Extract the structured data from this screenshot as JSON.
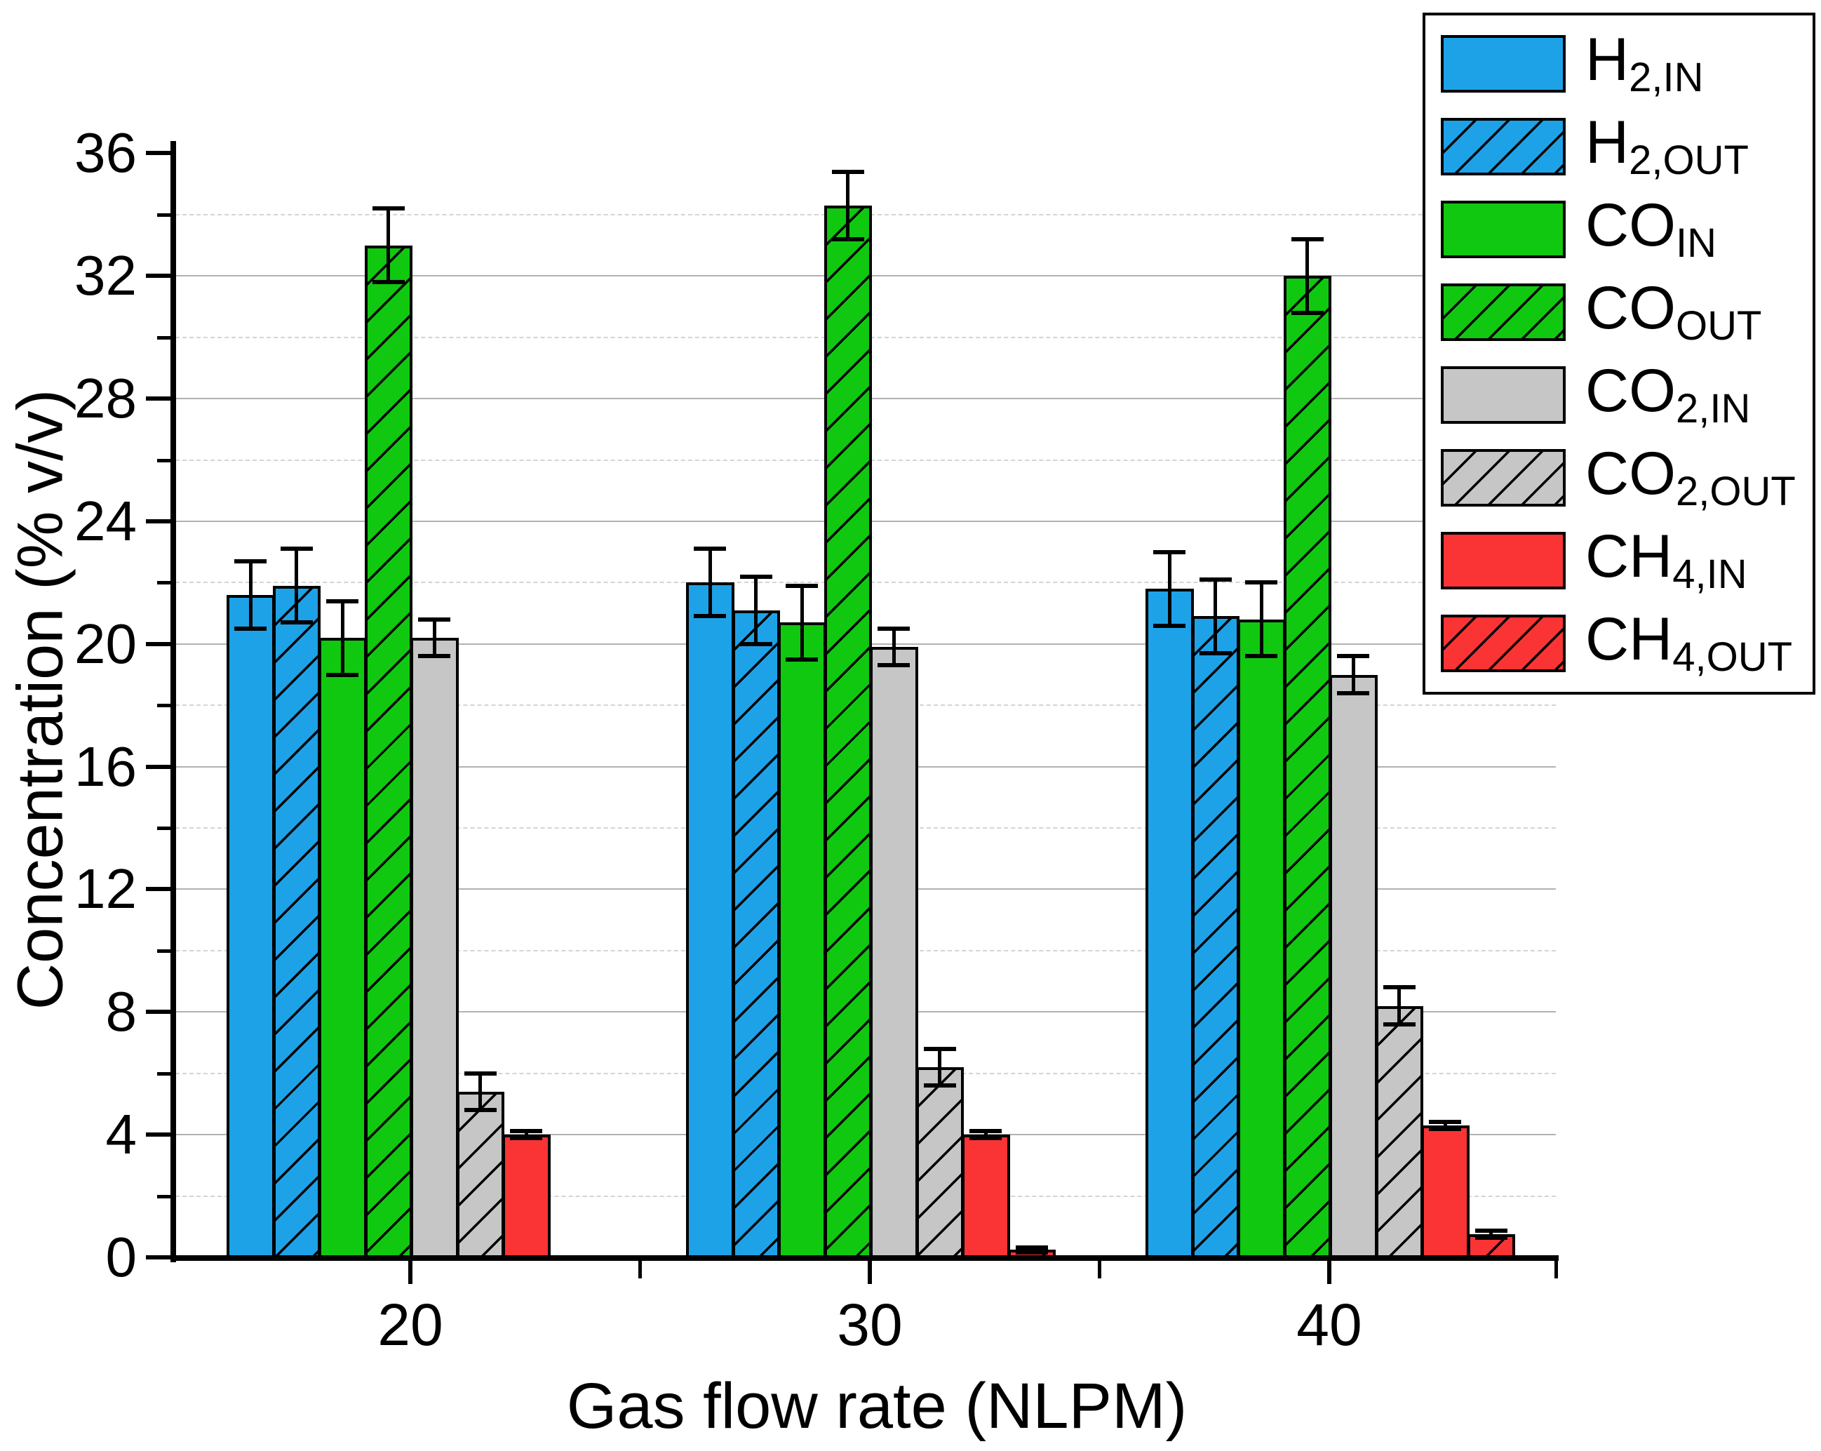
{
  "chart_data": {
    "type": "bar",
    "title": "",
    "xlabel": "Gas flow rate (NLPM)",
    "ylabel": "Concentration (% v/v)",
    "categories": [
      "20",
      "30",
      "40"
    ],
    "ylim": [
      0,
      36.4
    ],
    "y_major_ticks": [
      0,
      4,
      8,
      12,
      16,
      20,
      24,
      28,
      32,
      36
    ],
    "y_minor_ticks": [
      2,
      6,
      10,
      14,
      18,
      22,
      26,
      30,
      34
    ],
    "grid": {
      "major": "solid",
      "minor": "dashed"
    },
    "legend_position": "top-right",
    "error_bars": true,
    "series": [
      {
        "name": "H2,IN",
        "label_main": "H",
        "label_sub": "2,IN",
        "color": "#1da2e8",
        "hatch": false,
        "values": [
          21.6,
          22.0,
          21.8
        ],
        "errors": [
          1.1,
          1.1,
          1.2
        ]
      },
      {
        "name": "H2,OUT",
        "label_main": "H",
        "label_sub": "2,OUT",
        "color": "#1da2e8",
        "hatch": true,
        "values": [
          21.9,
          21.1,
          20.9
        ],
        "errors": [
          1.2,
          1.1,
          1.2
        ]
      },
      {
        "name": "CO,IN",
        "label_main": "CO",
        "label_sub": "IN",
        "color": "#10c810",
        "hatch": false,
        "values": [
          20.2,
          20.7,
          20.8
        ],
        "errors": [
          1.2,
          1.2,
          1.2
        ]
      },
      {
        "name": "CO,OUT",
        "label_main": "CO",
        "label_sub": "OUT",
        "color": "#10c810",
        "hatch": true,
        "values": [
          33.0,
          34.3,
          32.0
        ],
        "errors": [
          1.2,
          1.1,
          1.2
        ]
      },
      {
        "name": "CO2,IN",
        "label_main": "CO",
        "label_sub": "2,IN",
        "color": "#c6c6c6",
        "hatch": false,
        "values": [
          20.2,
          19.9,
          19.0
        ],
        "errors": [
          0.6,
          0.6,
          0.6
        ]
      },
      {
        "name": "CO2,OUT",
        "label_main": "CO",
        "label_sub": "2,OUT",
        "color": "#c6c6c6",
        "hatch": true,
        "values": [
          5.4,
          6.2,
          8.2
        ],
        "errors": [
          0.6,
          0.6,
          0.6
        ]
      },
      {
        "name": "CH4,IN",
        "label_main": "CH",
        "label_sub": "4,IN",
        "color": "#fa3434",
        "hatch": false,
        "values": [
          4.0,
          4.0,
          4.3
        ],
        "errors": [
          0.12,
          0.12,
          0.12
        ]
      },
      {
        "name": "CH4,OUT",
        "label_main": "CH",
        "label_sub": "4,OUT",
        "color": "#fa3434",
        "hatch": true,
        "values": [
          0,
          0.25,
          0.75
        ],
        "errors": [
          null,
          0.08,
          0.12
        ]
      }
    ],
    "hatch_color": "#000000",
    "axis_color": "#000000"
  }
}
